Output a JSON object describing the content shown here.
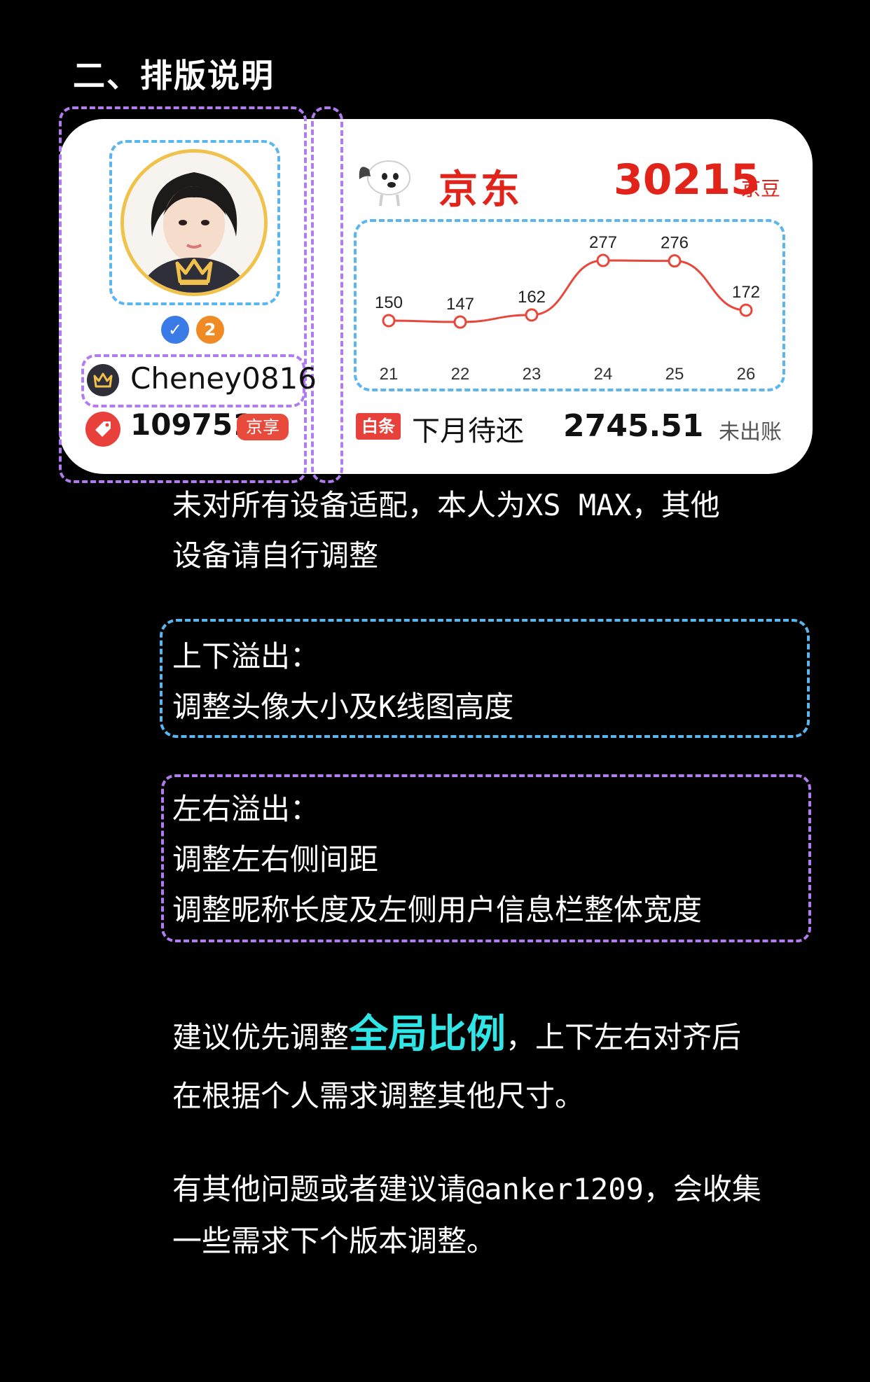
{
  "section_title": "二、排版说明",
  "user": {
    "nickname": "Cheney0816",
    "verify_badge": "✓",
    "level_badge": "2",
    "score": "109751",
    "score_tag": "京享"
  },
  "jd": {
    "logo_text": "京东",
    "beans": "30215",
    "beans_unit": "京豆"
  },
  "chart_data": {
    "type": "line",
    "categories": [
      "21",
      "22",
      "23",
      "24",
      "25",
      "26"
    ],
    "values": [
      150,
      147,
      162,
      277,
      276,
      172
    ],
    "color": "#e8473b"
  },
  "baitiao": {
    "tag": "白条",
    "label": "下月待还",
    "amount": "2745.51",
    "status": "未出账"
  },
  "notes": {
    "p1_line1": "未对所有设备适配，本人为XS MAX，其他",
    "p1_line2": "设备请自行调整",
    "vertical_title": "上下溢出：",
    "vertical_line1": "调整头像大小及K线图高度",
    "horizontal_title": "左右溢出：",
    "horizontal_line1": "调整左右侧间距",
    "horizontal_line2": "调整昵称长度及左侧用户信息栏整体宽度",
    "tip_prefix": "建议优先调整",
    "tip_highlight": "全局比例",
    "tip_suffix": "，上下左右对齐后",
    "tip_line2": "在根据个人需求调整其他尺寸。",
    "contact_line1": "有其他问题或者建议请@anker1209，会收集",
    "contact_line2": "一些需求下个版本调整。"
  },
  "colors": {
    "accent_red": "#e2231a",
    "purple_dash": "#b07cf0",
    "blue_dash": "#5ab6ee",
    "highlight_cyan": "#2ee6e6",
    "avatar_ring": "#f1c24b"
  }
}
